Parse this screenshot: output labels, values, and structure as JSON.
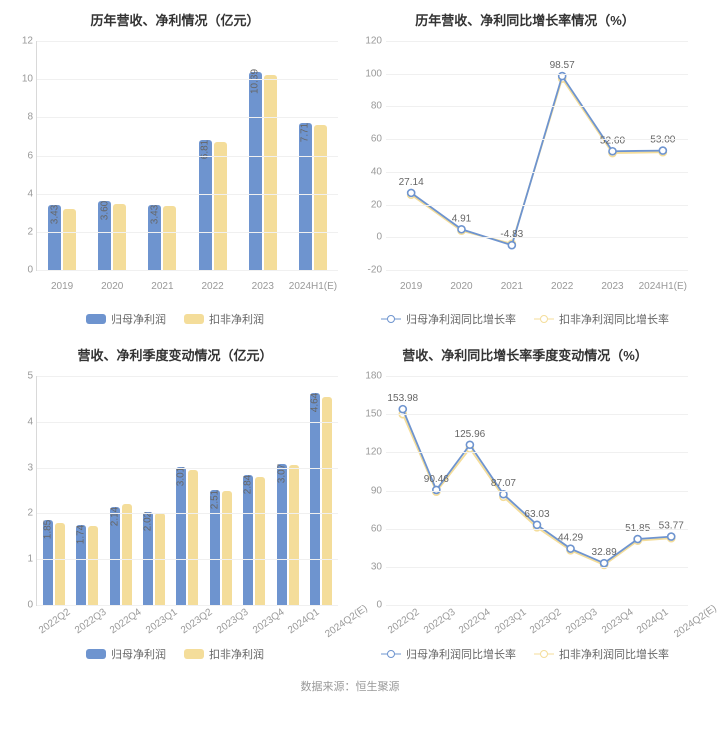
{
  "colors": {
    "series1": "#6e94cf",
    "series2": "#f4dd9a",
    "grid": "#f0f0f0",
    "axis": "#d9d9d9",
    "text": "#666666",
    "bg": "#ffffff"
  },
  "footer": "数据来源：恒生聚源",
  "charts": {
    "topLeft": {
      "type": "bar",
      "title": "历年营收、净利情况（亿元）",
      "categories": [
        "2019",
        "2020",
        "2021",
        "2022",
        "2023",
        "2024H1(E)"
      ],
      "series": [
        {
          "name": "归母净利润",
          "color": "#6e94cf",
          "values": [
            3.43,
            3.6,
            3.43,
            6.81,
            10.39,
            7.71
          ]
        },
        {
          "name": "扣非净利润",
          "color": "#f4dd9a",
          "values": [
            3.2,
            3.45,
            3.35,
            6.7,
            10.2,
            7.6
          ]
        }
      ],
      "value_labels": [
        "3.43",
        "3.60",
        "3.43",
        "6.81",
        "10.39",
        "7.71"
      ],
      "ylim": [
        0,
        12
      ],
      "ytick_step": 2,
      "label_fontsize": 10
    },
    "topRight": {
      "type": "line",
      "title": "历年营收、净利同比增长率情况（%）",
      "categories": [
        "2019",
        "2020",
        "2021",
        "2022",
        "2023",
        "2024H1(E)"
      ],
      "series": [
        {
          "name": "归母净利润同比增长率",
          "color": "#6e94cf",
          "values": [
            27.14,
            4.91,
            -4.83,
            98.57,
            52.6,
            53.0
          ]
        },
        {
          "name": "扣非净利润同比增长率",
          "color": "#f4dd9a",
          "values": [
            26.0,
            4.0,
            -4.0,
            97.0,
            51.5,
            52.0
          ]
        }
      ],
      "point_labels": [
        "27.14",
        "4.91",
        "-4.83",
        "98.57",
        "52.60",
        "53.00"
      ],
      "ylim": [
        -20,
        120
      ],
      "ytick_step": 20,
      "label_fontsize": 10
    },
    "bottomLeft": {
      "type": "bar",
      "title": "营收、净利季度变动情况（亿元）",
      "categories": [
        "2022Q2",
        "2022Q3",
        "2022Q4",
        "2023Q1",
        "2023Q2",
        "2023Q3",
        "2023Q4",
        "2024Q1",
        "2024Q2(E)"
      ],
      "series": [
        {
          "name": "归母净利润",
          "color": "#6e94cf",
          "values": [
            1.85,
            1.74,
            2.14,
            2.02,
            3.01,
            2.51,
            2.84,
            3.07,
            4.64
          ]
        },
        {
          "name": "扣非净利润",
          "color": "#f4dd9a",
          "values": [
            1.8,
            1.72,
            2.2,
            2.0,
            2.95,
            2.48,
            2.8,
            3.05,
            4.55
          ]
        }
      ],
      "value_labels": [
        "1.85",
        "1.74",
        "2.14",
        "2.02",
        "3.01",
        "2.51",
        "2.84",
        "3.07",
        "4.64"
      ],
      "ylim": [
        0,
        5
      ],
      "ytick_step": 1,
      "rotate_x": true,
      "label_fontsize": 10
    },
    "bottomRight": {
      "type": "line",
      "title": "营收、净利同比增长率季度变动情况（%）",
      "categories": [
        "2022Q2",
        "2022Q3",
        "2022Q4",
        "2023Q1",
        "2023Q2",
        "2023Q3",
        "2023Q4",
        "2024Q1",
        "2024Q2(E)"
      ],
      "series": [
        {
          "name": "归母净利润同比增长率",
          "color": "#6e94cf",
          "values": [
            153.98,
            90.46,
            125.96,
            87.07,
            63.03,
            44.29,
            32.89,
            51.85,
            53.77
          ]
        },
        {
          "name": "扣非净利润同比增长率",
          "color": "#f4dd9a",
          "values": [
            150.0,
            89.0,
            123.0,
            85.0,
            61.0,
            43.0,
            31.5,
            50.5,
            52.5
          ]
        }
      ],
      "point_labels": [
        "153.98",
        "90.46",
        "125.96",
        "87.07",
        "63.03",
        "44.29",
        "32.89",
        "51.85",
        "53.77"
      ],
      "ylim": [
        0,
        180
      ],
      "ytick_step": 30,
      "rotate_x": true,
      "label_fontsize": 10
    }
  }
}
